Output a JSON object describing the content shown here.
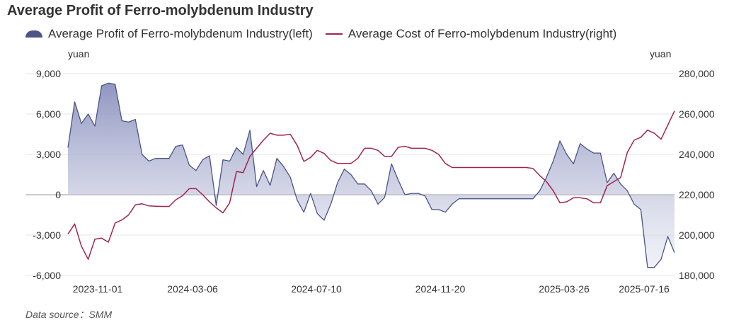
{
  "title": "Average Profit of Ferro-molybdenum Industry",
  "legend": {
    "profit": "Average Profit of Ferro-molybdenum Industry(left)",
    "cost": "Average Cost of Ferro-molybdenum Industry(right)"
  },
  "units": {
    "left": "yuan",
    "right": "yuan"
  },
  "source": "Data source：SMM",
  "colors": {
    "profit_line": "#4a5487",
    "profit_fill": "#9aa0c6",
    "cost_line": "#a0254d"
  },
  "chart_data": {
    "type": "area",
    "title": "Average Profit of Ferro-molybdenum Industry",
    "x_tick_labels": [
      "2023-11-01",
      "2024-03-06",
      "2024-07-10",
      "2024-11-20",
      "2025-03-26",
      "2025-07-16"
    ],
    "y_left": {
      "label": "yuan",
      "range": [
        -6000,
        9000
      ],
      "ticks": [
        9000,
        6000,
        3000,
        0,
        -3000,
        -6000
      ],
      "tick_labels": [
        "9,000",
        "6,000",
        "3,000",
        "0",
        "-3,000",
        "-6,000"
      ]
    },
    "y_right": {
      "label": "yuan",
      "range": [
        180000,
        280000
      ],
      "ticks": [
        280000,
        260000,
        240000,
        220000,
        200000,
        180000
      ],
      "tick_labels": [
        "280,000",
        "260,000",
        "240,000",
        "220,000",
        "200,000",
        "180,000"
      ]
    },
    "grid": true,
    "legend_position": "top-left",
    "series": [
      {
        "name": "Average Profit of Ferro-molybdenum Industry(left)",
        "axis": "left",
        "style": "area",
        "values": [
          3500,
          6900,
          5300,
          6000,
          5100,
          8100,
          8300,
          8200,
          5500,
          5400,
          5600,
          3000,
          2500,
          2700,
          2700,
          2700,
          3600,
          3700,
          2200,
          1800,
          2600,
          2900,
          -800,
          2600,
          2500,
          3500,
          3000,
          4800,
          600,
          1800,
          700,
          2700,
          2100,
          1300,
          -400,
          -1300,
          100,
          -1400,
          -1900,
          -700,
          900,
          1900,
          1500,
          800,
          800,
          300,
          -700,
          -200,
          2300,
          1100,
          0,
          100,
          100,
          -100,
          -1100,
          -1100,
          -1300,
          -700,
          -300,
          -300,
          -300,
          -300,
          -300,
          -300,
          -300,
          -300,
          -300,
          -300,
          -300,
          -300,
          300,
          1300,
          2500,
          4000,
          3000,
          2300,
          3800,
          3400,
          3100,
          3100,
          900,
          1600,
          800,
          300,
          -700,
          -1100,
          -5400,
          -5400,
          -4800,
          -3100,
          -4300
        ]
      },
      {
        "name": "Average Cost of Ferro-molybdenum Industry(right)",
        "axis": "right",
        "style": "line",
        "values": [
          200500,
          205500,
          194500,
          188000,
          198000,
          198500,
          196500,
          206000,
          207500,
          210000,
          215000,
          215500,
          214500,
          214300,
          214200,
          214200,
          217500,
          219500,
          223000,
          223000,
          220000,
          216500,
          213500,
          211000,
          216000,
          231500,
          231000,
          239000,
          243000,
          247000,
          250500,
          249500,
          249500,
          250000,
          244500,
          236500,
          238500,
          242000,
          240500,
          237000,
          235500,
          235500,
          235500,
          238000,
          243000,
          243000,
          242000,
          239000,
          239000,
          243500,
          244000,
          243000,
          243000,
          243000,
          242000,
          240000,
          235500,
          233500,
          233500,
          233500,
          233500,
          233500,
          233500,
          233500,
          233500,
          233500,
          233500,
          233500,
          233500,
          233000,
          229500,
          226500,
          222000,
          216000,
          216500,
          218500,
          218500,
          218000,
          216000,
          216000,
          224500,
          226500,
          228500,
          241000,
          247000,
          248500,
          252000,
          250500,
          247500,
          254500,
          261500
        ]
      }
    ]
  }
}
